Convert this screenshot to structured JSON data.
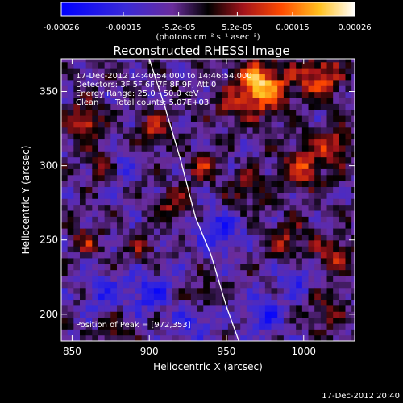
{
  "chart_data": {
    "type": "heatmap",
    "title": "Reconstructed RHESSI Image",
    "xlabel": "Heliocentric X (arcsec)",
    "ylabel": "Heliocentric Y (arcsec)",
    "xlim": [
      843,
      1033
    ],
    "ylim": [
      182,
      372
    ],
    "x_ticks": [
      850,
      900,
      950,
      1000
    ],
    "y_ticks": [
      200,
      250,
      300,
      350
    ],
    "colorbar": {
      "min": -0.00026,
      "max": 0.00026,
      "tick_values": [
        -0.00026,
        -0.00015,
        -5.2e-05,
        5.2e-05,
        0.00015,
        0.00026
      ],
      "tick_labels": [
        "-0.00026",
        "-0.00015",
        "-5.2e-05",
        "5.2e-05",
        "0.00015",
        "0.00026"
      ],
      "unit_label": "(photons cm⁻² s⁻¹ asec⁻²)"
    },
    "limb_curve": {
      "x": [
        900,
        910,
        920,
        930,
        940,
        950,
        958
      ],
      "y": [
        372,
        340,
        305,
        265,
        240,
        205,
        182
      ]
    },
    "hotspots": [
      {
        "x": 972,
        "y": 353,
        "value": 0.00026,
        "spread": 12
      },
      {
        "x": 1010,
        "y": 360,
        "value": 0.00018,
        "spread": 10
      },
      {
        "x": 858,
        "y": 330,
        "value": 0.00017,
        "spread": 8
      },
      {
        "x": 870,
        "y": 300,
        "value": 0.00012,
        "spread": 7
      },
      {
        "x": 905,
        "y": 325,
        "value": 0.00012,
        "spread": 8
      },
      {
        "x": 935,
        "y": 300,
        "value": 0.0001,
        "spread": 7
      },
      {
        "x": 915,
        "y": 275,
        "value": 0.00011,
        "spread": 7
      },
      {
        "x": 1000,
        "y": 300,
        "value": 0.00015,
        "spread": 10
      },
      {
        "x": 1020,
        "y": 315,
        "value": 0.00013,
        "spread": 8
      },
      {
        "x": 965,
        "y": 285,
        "value": 0.00011,
        "spread": 8
      },
      {
        "x": 990,
        "y": 250,
        "value": 0.00012,
        "spread": 9
      },
      {
        "x": 1020,
        "y": 240,
        "value": 0.00012,
        "spread": 9
      },
      {
        "x": 860,
        "y": 250,
        "value": 0.0001,
        "spread": 7
      },
      {
        "x": 895,
        "y": 245,
        "value": 9e-05,
        "spread": 7
      },
      {
        "x": 935,
        "y": 215,
        "value": 8e-05,
        "spread": 7
      },
      {
        "x": 1015,
        "y": 200,
        "value": 0.0001,
        "spread": 8
      },
      {
        "x": 880,
        "y": 190,
        "value": 8e-05,
        "spread": 7
      },
      {
        "x": 950,
        "y": 340,
        "value": 9e-05,
        "spread": 6
      }
    ],
    "coldspots": [
      {
        "x": 945,
        "y": 255,
        "value": -0.00013,
        "spread": 10
      },
      {
        "x": 900,
        "y": 215,
        "value": -0.00012,
        "spread": 10
      },
      {
        "x": 975,
        "y": 200,
        "value": -0.00013,
        "spread": 9
      },
      {
        "x": 880,
        "y": 300,
        "value": -0.0001,
        "spread": 8
      },
      {
        "x": 995,
        "y": 225,
        "value": -0.00011,
        "spread": 8
      },
      {
        "x": 870,
        "y": 215,
        "value": -0.00011,
        "spread": 8
      },
      {
        "x": 930,
        "y": 195,
        "value": -0.0001,
        "spread": 8
      }
    ]
  },
  "annotations": {
    "line1": "17-Dec-2012 14:40:54.000 to 14:46:54.000",
    "line2": "Detectors: 3F 5F 6F 7F 8F 9F, Att 0",
    "line3": "Energy Range: 25.0 - 50.0 keV",
    "line4_left": "Clean",
    "line4_right": "Total counts: 5.07E+03",
    "peak": "Position of Peak = [972,353]"
  },
  "footer_timestamp": "17-Dec-2012 20:40",
  "colors": {
    "background": "#000000",
    "axis": "#ffffff",
    "limb": "#ffffff"
  }
}
